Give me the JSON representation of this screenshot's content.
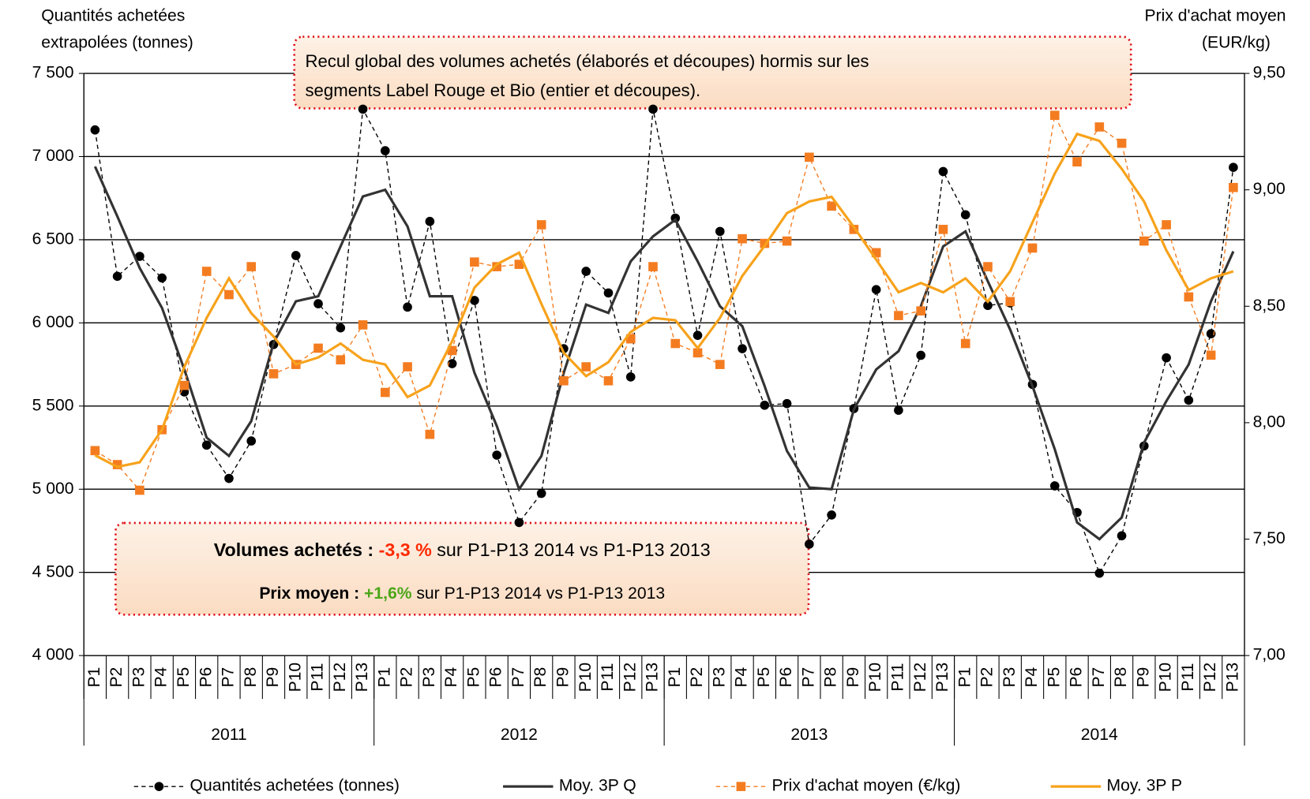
{
  "chart_data": {
    "type": "line",
    "ylabel": [
      "Quantités achetées",
      "extrapolées (tonnes)"
    ],
    "y2label": [
      "Prix d'achat moyen",
      "(EUR/kg)"
    ],
    "categories": [
      "P1",
      "P2",
      "P3",
      "P4",
      "P5",
      "P6",
      "P7",
      "P8",
      "P9",
      "P10",
      "P11",
      "P12",
      "P13",
      "P1",
      "P2",
      "P3",
      "P4",
      "P5",
      "P6",
      "P7",
      "P8",
      "P9",
      "P10",
      "P11",
      "P12",
      "P13",
      "P1",
      "P2",
      "P3",
      "P4",
      "P5",
      "P6",
      "P7",
      "P8",
      "P9",
      "P10",
      "P11",
      "P12",
      "P13",
      "P1",
      "P2",
      "P3",
      "P4",
      "P5",
      "P6",
      "P7",
      "P8",
      "P9",
      "P10",
      "P11",
      "P12",
      "P13"
    ],
    "groups": [
      "2011",
      "2012",
      "2013",
      "2014"
    ],
    "ylim": [
      4000,
      7500
    ],
    "yticks": [
      {
        "value": 4000,
        "label": "4 000"
      },
      {
        "value": 4500,
        "label": "4 500"
      },
      {
        "value": 5000,
        "label": "5 000"
      },
      {
        "value": 5500,
        "label": "5 500"
      },
      {
        "value": 6000,
        "label": "6 000"
      },
      {
        "value": 6500,
        "label": "6 500"
      },
      {
        "value": 7000,
        "label": "7 000"
      },
      {
        "value": 7500,
        "label": "7 500"
      }
    ],
    "y2lim": [
      7,
      9.5
    ],
    "y2ticks": [
      {
        "value": 7,
        "label": "7,00"
      },
      {
        "value": 7.5,
        "label": "7,50"
      },
      {
        "value": 8,
        "label": "8,00"
      },
      {
        "value": 8.5,
        "label": "8,50"
      },
      {
        "value": 9,
        "label": "9,00"
      },
      {
        "value": 9.5,
        "label": "9,50"
      }
    ],
    "grid": true,
    "legend": "bottom",
    "series": [
      {
        "name": "Quantités achetées (tonnes)",
        "color": "#000000",
        "line_style": "dashed",
        "marker": "circle",
        "values": [
          7160,
          6280,
          6400,
          6270,
          5585,
          5265,
          5065,
          5290,
          5870,
          6405,
          6115,
          5970,
          7285,
          7035,
          6095,
          6610,
          5755,
          6135,
          5205,
          4800,
          4975,
          5845,
          6310,
          6180,
          5675,
          7285,
          6630,
          5925,
          6550,
          5845,
          5505,
          5515,
          4670,
          4845,
          5485,
          6200,
          5475,
          5805,
          6910,
          6650,
          6105,
          6120,
          5630,
          5020,
          4860,
          4495,
          4720,
          5260,
          5790,
          5535,
          5935,
          6935
        ]
      },
      {
        "name": "Moy. 3P Q",
        "color": "#333333",
        "line_style": "solid",
        "marker": "none",
        "values": [
          6940,
          6640,
          6330,
          6090,
          5720,
          5310,
          5200,
          5410,
          5880,
          6130,
          6160,
          6460,
          6760,
          6800,
          6580,
          6160,
          6160,
          5700,
          5380,
          5000,
          5200,
          5700,
          6110,
          6060,
          6370,
          6520,
          6620,
          6370,
          6100,
          5980,
          5620,
          5230,
          5010,
          5000,
          5480,
          5720,
          5830,
          6100,
          6460,
          6550,
          6250,
          5960,
          5620,
          5240,
          4800,
          4700,
          4830,
          5280,
          5530,
          5750,
          6130,
          6430
        ]
      },
      {
        "name": "Prix d'achat moyen (€/kg)",
        "color": "#f47c20",
        "line_style": "dashed",
        "marker": "square",
        "axis": "y2",
        "values": [
          7.88,
          7.82,
          7.71,
          7.97,
          8.16,
          8.65,
          8.55,
          8.67,
          8.21,
          8.25,
          8.32,
          8.27,
          8.42,
          8.13,
          8.24,
          7.95,
          8.31,
          8.69,
          8.67,
          8.68,
          8.85,
          8.18,
          8.24,
          8.18,
          8.36,
          8.67,
          8.34,
          8.3,
          8.25,
          8.79,
          8.77,
          8.78,
          9.14,
          8.93,
          8.83,
          8.73,
          8.46,
          8.48,
          8.83,
          8.34,
          8.67,
          8.52,
          8.75,
          9.32,
          9.12,
          9.27,
          9.2,
          8.78,
          8.85,
          8.54,
          8.29,
          9.01
        ]
      },
      {
        "name": "Moy. 3P P",
        "color": "#f7a21b",
        "line_style": "solid",
        "marker": "none",
        "axis": "y2",
        "values": [
          7.86,
          7.81,
          7.83,
          7.97,
          8.24,
          8.45,
          8.62,
          8.47,
          8.37,
          8.25,
          8.28,
          8.34,
          8.27,
          8.25,
          8.11,
          8.16,
          8.35,
          8.58,
          8.68,
          8.73,
          8.51,
          8.3,
          8.2,
          8.26,
          8.39,
          8.45,
          8.44,
          8.32,
          8.45,
          8.63,
          8.76,
          8.9,
          8.95,
          8.97,
          8.84,
          8.7,
          8.56,
          8.6,
          8.56,
          8.62,
          8.52,
          8.65,
          8.86,
          9.07,
          9.24,
          9.21,
          9.09,
          8.95,
          8.74,
          8.57,
          8.62,
          8.65
        ]
      }
    ],
    "annotations": [
      {
        "lines": [
          "Recul global des volumes achetés (élaborés et découpes) hormis sur les",
          "segments Label Rouge et Bio (entier et découpes)."
        ]
      },
      {
        "label": "Volumes achetés : ",
        "change": "-3,3 %",
        "change_color": "#ff2a00",
        "text": " sur P1-P13 2014 vs P1-P13 2013"
      },
      {
        "label": "Prix moyen : ",
        "change": "+1,6%",
        "change_color": "#4ca619",
        "text": " sur P1-P13 2014 vs P1-P13 2013"
      }
    ]
  }
}
